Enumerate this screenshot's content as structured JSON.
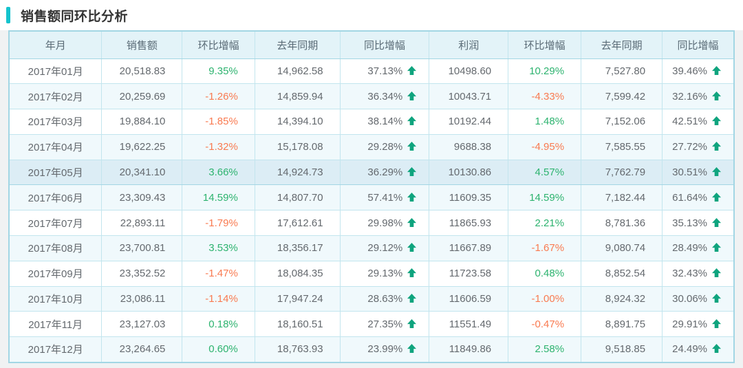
{
  "page": {
    "title": "销售额同环比分析"
  },
  "table": {
    "columns": [
      "年月",
      "销售额",
      "环比增幅",
      "去年同期",
      "同比增幅",
      "利润",
      "环比增幅",
      "去年同期",
      "同比增幅"
    ],
    "column_widths_pct": [
      12.8,
      11.1,
      10.0,
      11.75,
      12.3,
      10.9,
      10.05,
      11.2,
      9.9
    ],
    "highlighted_row_index": 4,
    "yoy_trend_icon": "up-arrow",
    "rows": [
      {
        "month": "2017年01月",
        "sales": "20,518.83",
        "sales_mom": "9.35%",
        "sales_ly": "14,962.58",
        "sales_yoy": "37.13%",
        "profit": "10498.60",
        "profit_mom": "10.29%",
        "profit_ly": "7,527.80",
        "profit_yoy": "39.46%"
      },
      {
        "month": "2017年02月",
        "sales": "20,259.69",
        "sales_mom": "-1.26%",
        "sales_ly": "14,859.94",
        "sales_yoy": "36.34%",
        "profit": "10043.71",
        "profit_mom": "-4.33%",
        "profit_ly": "7,599.42",
        "profit_yoy": "32.16%"
      },
      {
        "month": "2017年03月",
        "sales": "19,884.10",
        "sales_mom": "-1.85%",
        "sales_ly": "14,394.10",
        "sales_yoy": "38.14%",
        "profit": "10192.44",
        "profit_mom": "1.48%",
        "profit_ly": "7,152.06",
        "profit_yoy": "42.51%"
      },
      {
        "month": "2017年04月",
        "sales": "19,622.25",
        "sales_mom": "-1.32%",
        "sales_ly": "15,178.08",
        "sales_yoy": "29.28%",
        "profit": "9688.38",
        "profit_mom": "-4.95%",
        "profit_ly": "7,585.55",
        "profit_yoy": "27.72%"
      },
      {
        "month": "2017年05月",
        "sales": "20,341.10",
        "sales_mom": "3.66%",
        "sales_ly": "14,924.73",
        "sales_yoy": "36.29%",
        "profit": "10130.86",
        "profit_mom": "4.57%",
        "profit_ly": "7,762.79",
        "profit_yoy": "30.51%"
      },
      {
        "month": "2017年06月",
        "sales": "23,309.43",
        "sales_mom": "14.59%",
        "sales_ly": "14,807.70",
        "sales_yoy": "57.41%",
        "profit": "11609.35",
        "profit_mom": "14.59%",
        "profit_ly": "7,182.44",
        "profit_yoy": "61.64%"
      },
      {
        "month": "2017年07月",
        "sales": "22,893.11",
        "sales_mom": "-1.79%",
        "sales_ly": "17,612.61",
        "sales_yoy": "29.98%",
        "profit": "11865.93",
        "profit_mom": "2.21%",
        "profit_ly": "8,781.36",
        "profit_yoy": "35.13%"
      },
      {
        "month": "2017年08月",
        "sales": "23,700.81",
        "sales_mom": "3.53%",
        "sales_ly": "18,356.17",
        "sales_yoy": "29.12%",
        "profit": "11667.89",
        "profit_mom": "-1.67%",
        "profit_ly": "9,080.74",
        "profit_yoy": "28.49%"
      },
      {
        "month": "2017年09月",
        "sales": "23,352.52",
        "sales_mom": "-1.47%",
        "sales_ly": "18,084.35",
        "sales_yoy": "29.13%",
        "profit": "11723.58",
        "profit_mom": "0.48%",
        "profit_ly": "8,852.54",
        "profit_yoy": "32.43%"
      },
      {
        "month": "2017年10月",
        "sales": "23,086.11",
        "sales_mom": "-1.14%",
        "sales_ly": "17,947.24",
        "sales_yoy": "28.63%",
        "profit": "11606.59",
        "profit_mom": "-1.00%",
        "profit_ly": "8,924.32",
        "profit_yoy": "30.06%"
      },
      {
        "month": "2017年11月",
        "sales": "23,127.03",
        "sales_mom": "0.18%",
        "sales_ly": "18,160.51",
        "sales_yoy": "27.35%",
        "profit": "11551.49",
        "profit_mom": "-0.47%",
        "profit_ly": "8,891.75",
        "profit_yoy": "29.91%"
      },
      {
        "month": "2017年12月",
        "sales": "23,264.65",
        "sales_mom": "0.60%",
        "sales_ly": "18,763.93",
        "sales_yoy": "23.99%",
        "profit": "11849.86",
        "profit_mom": "2.58%",
        "profit_ly": "9,518.85",
        "profit_yoy": "24.49%"
      }
    ]
  },
  "colors": {
    "accent_teal": "#14c3cd",
    "positive_green": "#2db36f",
    "negative_orange": "#f97a50",
    "arrow_green": "#0fa47e",
    "header_bg": "#e3f3f8",
    "stripe_bg": "#f0f9fc",
    "highlight_bg": "#dcedf5",
    "border_outer": "#a2d6e4",
    "border_inner": "#c2e5ee",
    "page_gutter": "#f0f2f3"
  }
}
